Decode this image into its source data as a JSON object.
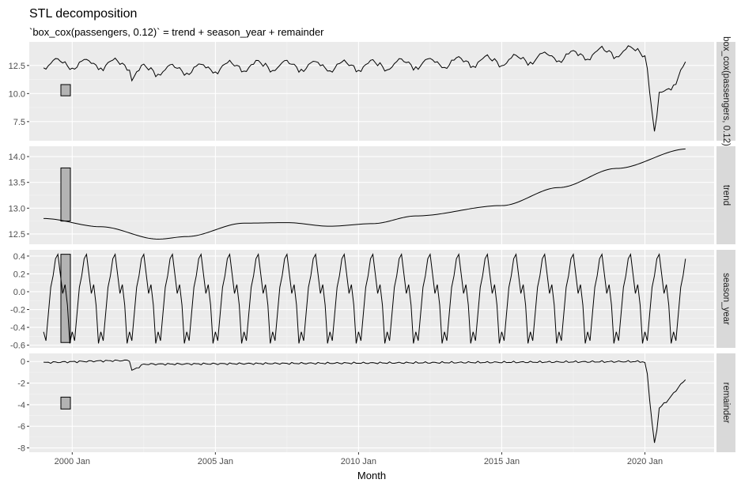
{
  "chart_data": {
    "type": "line",
    "title": "STL decomposition",
    "subtitle": "`box_cox(passengers, 0.12)` = trend + season_year + remainder",
    "xlabel": "Month",
    "x_ticks": [
      "2000 Jan",
      "2005 Jan",
      "2010 Jan",
      "2015 Jan",
      "2020 Jan"
    ],
    "x_range": [
      "1998 Jul",
      "2022 Jun"
    ],
    "grid": true,
    "panels": [
      {
        "name": "box_cox(passengers, 0.12)",
        "strip": "box_cox(passengers, 0.12)",
        "ylim": [
          5.8,
          14.6
        ],
        "yticks": [
          7.5,
          10.0,
          12.5
        ],
        "ytick_labels": [
          "7.5",
          "10.0",
          "12.5"
        ],
        "range_bar": [
          9.8,
          10.8
        ]
      },
      {
        "name": "trend",
        "strip": "trend",
        "ylim": [
          12.3,
          14.2
        ],
        "yticks": [
          12.5,
          13.0,
          13.5,
          14.0
        ],
        "ytick_labels": [
          "12.5",
          "13.0",
          "13.5",
          "14.0"
        ],
        "range_bar": [
          12.75,
          13.78
        ]
      },
      {
        "name": "season_year",
        "strip": "season_year",
        "ylim": [
          -0.63,
          0.47
        ],
        "yticks": [
          -0.6,
          -0.4,
          -0.2,
          0.0,
          0.2,
          0.4
        ],
        "ytick_labels": [
          "-0.6",
          "-0.4",
          "-0.2",
          "0.0",
          "0.2",
          "0.4"
        ],
        "range_bar": [
          -0.57,
          0.42
        ]
      },
      {
        "name": "remainder",
        "strip": "remainder",
        "ylim": [
          -8.4,
          0.75
        ],
        "yticks": [
          -8,
          -6,
          -4,
          -2,
          0
        ],
        "ytick_labels": [
          "-8",
          "-6",
          "-4",
          "-2",
          "0"
        ],
        "range_bar": [
          -4.4,
          -3.3
        ]
      }
    ],
    "series_x_range": [
      "1999 Jan",
      "2021 Jun"
    ],
    "trend_knots": {
      "x": [
        1999.0,
        2001.0,
        2003.0,
        2004.0,
        2006.0,
        2007.5,
        2009.0,
        2010.5,
        2012.0,
        2015.0,
        2017.0,
        2019.0,
        2021.5
      ],
      "y": [
        12.8,
        12.64,
        12.4,
        12.45,
        12.71,
        12.72,
        12.65,
        12.7,
        12.85,
        13.05,
        13.4,
        13.77,
        14.15
      ]
    },
    "seasonal_pattern": [
      -0.45,
      -0.55,
      -0.25,
      0.05,
      0.18,
      0.37,
      0.42,
      0.2,
      -0.02,
      0.08,
      -0.15,
      -0.58
    ],
    "remainder_knots": {
      "x": [
        1999.0,
        2001.0,
        2002.0,
        2002.05,
        2002.5,
        2019.9,
        2020.05,
        2020.2,
        2020.35,
        2020.5,
        2020.8,
        2021.2,
        2021.5
      ],
      "y": [
        -0.1,
        0.05,
        0.1,
        -0.9,
        -0.25,
        0.0,
        -0.2,
        -4.5,
        -8.0,
        -4.3,
        -3.6,
        -2.3,
        -1.4
      ]
    }
  }
}
